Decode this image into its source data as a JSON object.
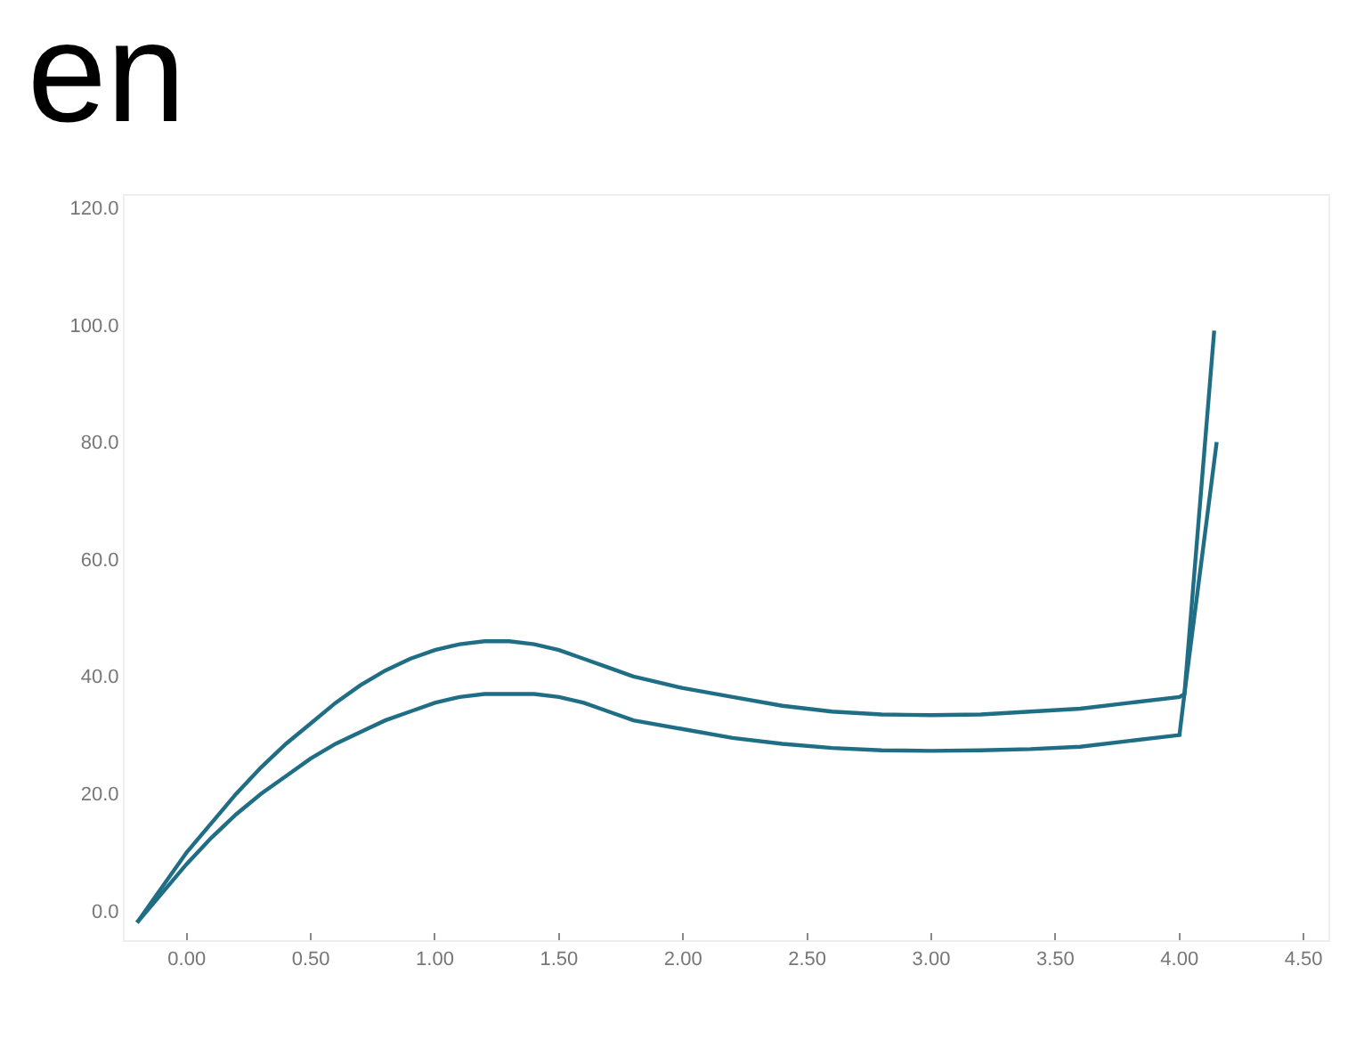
{
  "chart_data": {
    "type": "line",
    "title": "en",
    "xlim": [
      -0.25,
      4.6
    ],
    "ylim": [
      -5,
      122
    ],
    "xticks": [
      {
        "value": 0,
        "label": "0.00"
      },
      {
        "value": 0.5,
        "label": "0.50"
      },
      {
        "value": 1,
        "label": "1.00"
      },
      {
        "value": 1.5,
        "label": "1.50"
      },
      {
        "value": 2,
        "label": "2.00"
      },
      {
        "value": 2.5,
        "label": "2.50"
      },
      {
        "value": 3,
        "label": "3.00"
      },
      {
        "value": 3.5,
        "label": "3.50"
      },
      {
        "value": 4,
        "label": "4.00"
      },
      {
        "value": 4.5,
        "label": "4.50"
      }
    ],
    "yticks": [
      {
        "value": 0,
        "label": "0.0"
      },
      {
        "value": 20,
        "label": "20.0"
      },
      {
        "value": 40,
        "label": "40.0"
      },
      {
        "value": 60,
        "label": "60.0"
      },
      {
        "value": 80,
        "label": "80.0"
      },
      {
        "value": 100,
        "label": "100.0"
      },
      {
        "value": 120,
        "label": "120.0"
      }
    ],
    "grid": false,
    "marker": "none",
    "line_style": "solid",
    "series": [
      {
        "color": "#1f6e85",
        "x": [
          -0.2,
          -0.1,
          0,
          0.1,
          0.2,
          0.3,
          0.4,
          0.5,
          0.6,
          0.7,
          0.8,
          0.9,
          1.0,
          1.1,
          1.2,
          1.3,
          1.4,
          1.5,
          1.6,
          1.7,
          1.8,
          2.0,
          2.2,
          2.4,
          2.6,
          2.8,
          3.0,
          3.2,
          3.4,
          3.6,
          3.8,
          4.0,
          4.02,
          4.14
        ],
        "values": [
          -2,
          4,
          10,
          15,
          20,
          24.5,
          28.5,
          32,
          35.5,
          38.5,
          41,
          43,
          44.5,
          45.5,
          46,
          46,
          45.5,
          44.5,
          43,
          41.5,
          40,
          38,
          36.5,
          35,
          34,
          33.5,
          33.4,
          33.5,
          34,
          34.5,
          35.5,
          36.5,
          37,
          99
        ]
      },
      {
        "color": "#1f6e85",
        "x": [
          -0.2,
          -0.1,
          0,
          0.1,
          0.2,
          0.3,
          0.4,
          0.5,
          0.6,
          0.7,
          0.8,
          0.9,
          1.0,
          1.1,
          1.2,
          1.3,
          1.4,
          1.5,
          1.6,
          1.7,
          1.8,
          2.0,
          2.2,
          2.4,
          2.6,
          2.8,
          3.0,
          3.2,
          3.4,
          3.6,
          3.8,
          4.0,
          4.02,
          4.15
        ],
        "values": [
          -2,
          3,
          8,
          12.5,
          16.5,
          20,
          23,
          26,
          28.5,
          30.5,
          32.5,
          34,
          35.5,
          36.5,
          37,
          37,
          37,
          36.5,
          35.5,
          34,
          32.5,
          31,
          29.5,
          28.5,
          27.8,
          27.4,
          27.3,
          27.4,
          27.6,
          28,
          29,
          30,
          37,
          80
        ]
      }
    ]
  }
}
